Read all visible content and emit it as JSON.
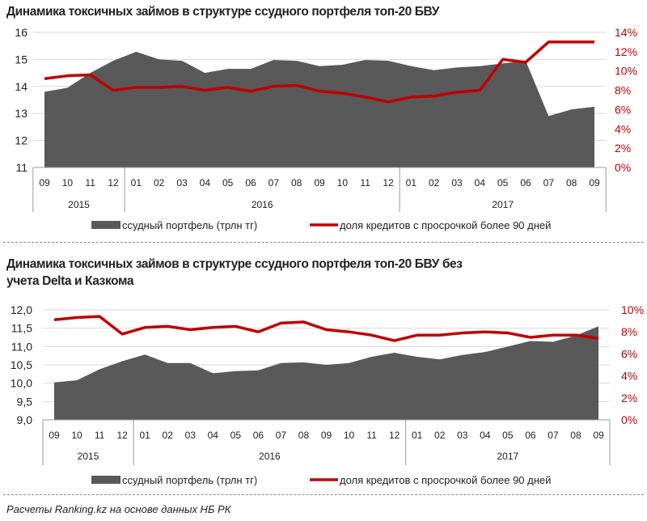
{
  "chart_data": [
    {
      "type": "area+line",
      "title": "Динамика токсичных займов в структуре ссудного портфеля топ-20 БВУ",
      "categories": [
        "09",
        "10",
        "11",
        "12",
        "01",
        "02",
        "03",
        "04",
        "05",
        "06",
        "07",
        "08",
        "09",
        "10",
        "11",
        "12",
        "01",
        "02",
        "03",
        "04",
        "05",
        "06",
        "07",
        "08",
        "09"
      ],
      "year_groups": [
        {
          "label": "2015",
          "count": 4
        },
        {
          "label": "2016",
          "count": 12
        },
        {
          "label": "2017",
          "count": 9
        }
      ],
      "y_left": {
        "ylim": [
          11,
          16
        ],
        "ticks": [
          "11",
          "12",
          "13",
          "14",
          "15",
          "16"
        ]
      },
      "y_right": {
        "ylim": [
          0,
          14
        ],
        "ticks": [
          "0%",
          "2%",
          "4%",
          "6%",
          "8%",
          "10%",
          "12%",
          "14%"
        ]
      },
      "grid": true,
      "legend_position": "bottom",
      "series": [
        {
          "name": "ссудный  портфель (трлн тг)",
          "type": "area",
          "axis": "left",
          "color": "#595959",
          "values": [
            13.8,
            13.95,
            14.5,
            14.95,
            15.28,
            15.0,
            14.95,
            14.5,
            14.65,
            14.65,
            14.98,
            14.95,
            14.75,
            14.8,
            14.98,
            14.95,
            14.75,
            14.6,
            14.7,
            14.75,
            14.85,
            14.95,
            12.9,
            13.15,
            13.25
          ]
        },
        {
          "name": "доля кредитов с просрочкой более 90 дней",
          "type": "line",
          "axis": "right",
          "color": "#c00000",
          "values": [
            9.2,
            9.5,
            9.6,
            8.0,
            8.3,
            8.3,
            8.4,
            8.0,
            8.3,
            7.9,
            8.4,
            8.5,
            7.9,
            7.7,
            7.3,
            6.8,
            7.3,
            7.4,
            7.8,
            8.0,
            11.2,
            10.9,
            13.0,
            13.0,
            13.0
          ]
        }
      ]
    },
    {
      "type": "area+line",
      "title": "Динамика токсичных займов в структуре ссудного портфеля топ-20 БВУ без учета Delta и Казкома",
      "categories": [
        "09",
        "10",
        "11",
        "12",
        "01",
        "02",
        "03",
        "04",
        "05",
        "06",
        "07",
        "08",
        "09",
        "10",
        "11",
        "12",
        "01",
        "02",
        "03",
        "04",
        "05",
        "06",
        "07",
        "08",
        "09"
      ],
      "year_groups": [
        {
          "label": "2015",
          "count": 4
        },
        {
          "label": "2016",
          "count": 12
        },
        {
          "label": "2017",
          "count": 9
        }
      ],
      "y_left": {
        "ylim": [
          9,
          12
        ],
        "ticks": [
          "9,0",
          "9,5",
          "10,0",
          "10,5",
          "11,0",
          "11,5",
          "12,0"
        ]
      },
      "y_right": {
        "ylim": [
          0,
          10
        ],
        "ticks": [
          "0%",
          "2%",
          "4%",
          "6%",
          "8%",
          "10%"
        ]
      },
      "grid": true,
      "legend_position": "bottom",
      "series": [
        {
          "name": "ссудный  портфель (трлн тг)",
          "type": "area",
          "axis": "left",
          "color": "#595959",
          "values": [
            10.02,
            10.08,
            10.38,
            10.6,
            10.78,
            10.55,
            10.55,
            10.27,
            10.33,
            10.35,
            10.55,
            10.57,
            10.5,
            10.55,
            10.72,
            10.83,
            10.72,
            10.65,
            10.77,
            10.85,
            11.0,
            11.15,
            11.13,
            11.3,
            11.55
          ]
        },
        {
          "name": "доля кредитов с просрочкой более 90 дней",
          "type": "line",
          "axis": "right",
          "color": "#c00000",
          "values": [
            9.1,
            9.3,
            9.4,
            7.8,
            8.4,
            8.5,
            8.2,
            8.4,
            8.5,
            8.0,
            8.8,
            8.9,
            8.2,
            8.0,
            7.7,
            7.2,
            7.7,
            7.7,
            7.9,
            8.0,
            7.9,
            7.5,
            7.7,
            7.7,
            7.4
          ]
        }
      ]
    }
  ],
  "titles": {
    "chart1": "Динамика токсичных займов в структуре ссудного портфеля топ-20 БВУ",
    "chart2_line1": "Динамика токсичных займов в структуре ссудного портфеля топ-20 БВУ без",
    "chart2_line2": "учета Delta и Казкома"
  },
  "footer": "Расчеты Ranking.kz на основе данных  НБ РК",
  "colors": {
    "area": "#595959",
    "line": "#c00000",
    "grid": "#d9d9d9",
    "right_axis_text": "#c00000"
  }
}
